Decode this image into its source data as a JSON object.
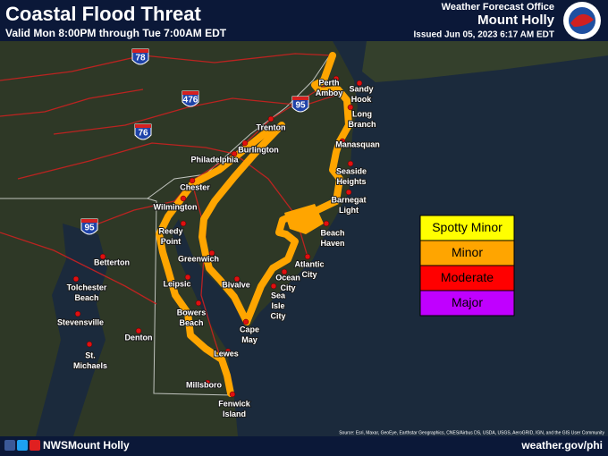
{
  "header": {
    "title": "Coastal Flood Threat",
    "valid": "Valid Mon 8:00PM through Tue 7:00AM EDT",
    "office": "Weather Forecast Office",
    "office_name": "Mount Holly",
    "issued": "Issued Jun 05, 2023 6:17 AM EDT"
  },
  "legend": [
    {
      "label": "Spotty Minor",
      "color": "#ffff00"
    },
    {
      "label": "Minor",
      "color": "#ffa500"
    },
    {
      "label": "Moderate",
      "color": "#ff0000"
    },
    {
      "label": "Major",
      "color": "#c000ff"
    }
  ],
  "cities": [
    {
      "lines": [
        "Perth",
        "Amboy"
      ]
    },
    {
      "lines": [
        "Sandy",
        "Hook"
      ]
    },
    {
      "lines": [
        "Long",
        "Branch"
      ]
    },
    {
      "lines": [
        "Manasquan"
      ]
    },
    {
      "lines": [
        "Seaside",
        "Heights"
      ]
    },
    {
      "lines": [
        "Barnegat",
        "Light"
      ]
    },
    {
      "lines": [
        "Beach",
        "Haven"
      ]
    },
    {
      "lines": [
        "Atlantic",
        "City"
      ]
    },
    {
      "lines": [
        "Ocean",
        "City"
      ]
    },
    {
      "lines": [
        "Sea",
        "Isle",
        "City"
      ]
    },
    {
      "lines": [
        "Cape",
        "May"
      ]
    },
    {
      "lines": [
        "Trenton"
      ]
    },
    {
      "lines": [
        "Burlington"
      ]
    },
    {
      "lines": [
        "Philadelphia"
      ]
    },
    {
      "lines": [
        "Chester"
      ]
    },
    {
      "lines": [
        "Wilmington"
      ]
    },
    {
      "lines": [
        "Reedy",
        "Point"
      ]
    },
    {
      "lines": [
        "Greenwich"
      ]
    },
    {
      "lines": [
        "Bivalve"
      ]
    },
    {
      "lines": [
        "Leipsic"
      ]
    },
    {
      "lines": [
        "Bowers",
        "Beach"
      ]
    },
    {
      "lines": [
        "Lewes"
      ]
    },
    {
      "lines": [
        "Millsboro"
      ]
    },
    {
      "lines": [
        "Fenwick",
        "Island"
      ]
    },
    {
      "lines": [
        "Betterton"
      ]
    },
    {
      "lines": [
        "Tolchester",
        "Beach"
      ]
    },
    {
      "lines": [
        "Stevensville"
      ]
    },
    {
      "lines": [
        "Denton"
      ]
    },
    {
      "lines": [
        "St.",
        "Michaels"
      ]
    }
  ],
  "highways": [
    "78",
    "476",
    "95",
    "76",
    "95"
  ],
  "source": "Source: Esri, Maxar, GeoEye, Earthstar Geographics, CNES/Airbus DS, USDA, USGS, AeroGRID, IGN, and the GIS User Community",
  "footer": {
    "social": "NWSMount Holly",
    "website": "weather.gov/phi"
  }
}
